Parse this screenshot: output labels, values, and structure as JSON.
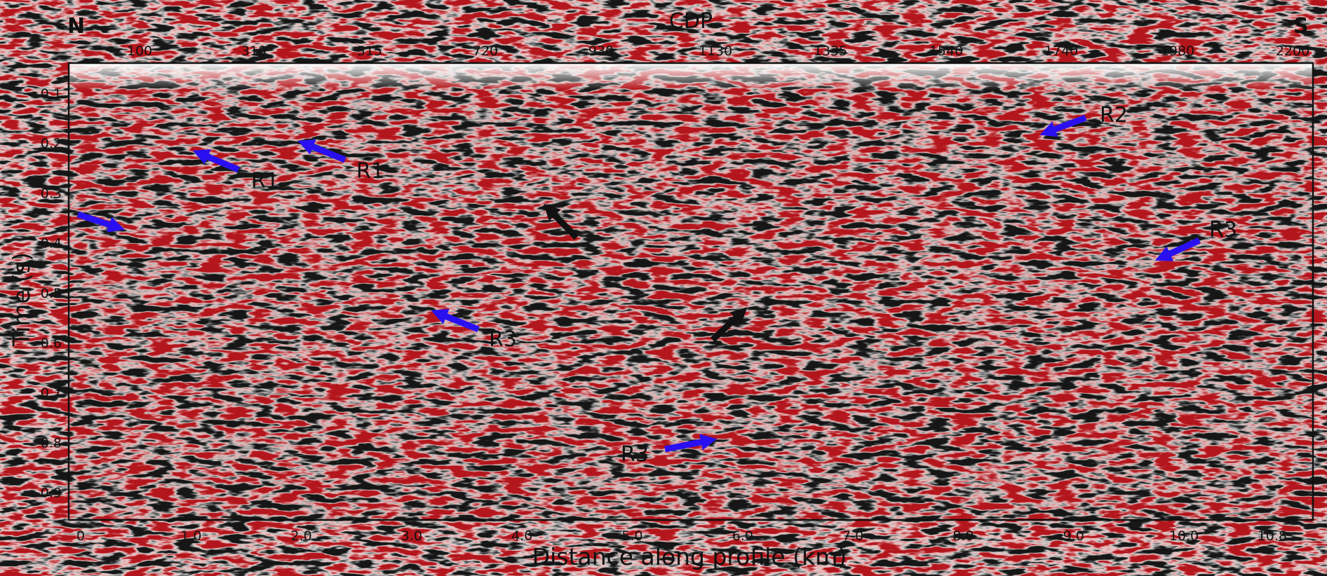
{
  "figure": {
    "direction_left": "N",
    "direction_right": "S",
    "top_axis": {
      "title": "CDP",
      "ticks": [
        "100",
        "310",
        "515",
        "720",
        "930",
        "1130",
        "1335",
        "1540",
        "1740",
        "1980",
        "2200"
      ]
    },
    "left_axis": {
      "title": "Time (s)",
      "ticks": [
        "0.1",
        "0.2",
        "0.3",
        "0.4",
        "0.5",
        "0.6",
        "0.7",
        "0.8",
        "0.9"
      ],
      "range": [
        0.05,
        0.93
      ]
    },
    "bottom_axis": {
      "title": "Distance along profile (km)",
      "ticks": [
        "0",
        "1.0",
        "2.0",
        "3.0",
        "4.0",
        "5.0",
        "6.0",
        "7.0",
        "8.0",
        "9.0",
        "10.0",
        "10.8"
      ],
      "range": [
        0,
        10.8
      ]
    },
    "annotations": [
      {
        "label": "R1",
        "arrow_color": "blue"
      },
      {
        "label": "R1",
        "arrow_color": "blue"
      },
      {
        "label": "R2",
        "arrow_color": "blue"
      },
      {
        "label": "R3",
        "arrow_color": "blue"
      },
      {
        "label": "R3",
        "arrow_color": "blue"
      },
      {
        "label": "R3",
        "arrow_color": "blue"
      },
      {
        "label": "",
        "arrow_color": "blue"
      },
      {
        "label": "",
        "arrow_color": "black"
      },
      {
        "label": "",
        "arrow_color": "black"
      }
    ],
    "colors": {
      "positive_amplitude": "#b3161c",
      "negative_amplitude": "#141414",
      "arrow_blue": "#2a10f0",
      "arrow_black": "#111111",
      "frame": "#111111"
    }
  }
}
